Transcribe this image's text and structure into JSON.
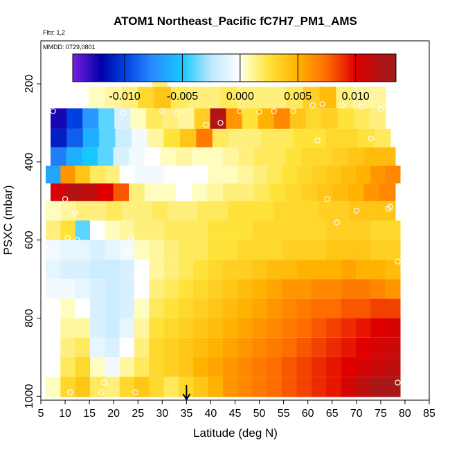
{
  "chart_data": {
    "type": "heatmap",
    "title": "ATOM1 Northeast_Pacific fC7H7_PM1_AMS",
    "annotations": [
      "Flts: 1,2",
      "MMDD: 0729,0801"
    ],
    "xlabel": "Latitude (deg N)",
    "ylabel": "PSXC (mbar)",
    "xlim": [
      5,
      85
    ],
    "ylim": [
      1010,
      90
    ],
    "x_ticks": [
      5,
      10,
      15,
      20,
      25,
      30,
      35,
      40,
      45,
      50,
      55,
      60,
      65,
      70,
      75,
      80,
      85
    ],
    "y_ticks": [
      200,
      400,
      600,
      800,
      1000
    ],
    "colorbar": {
      "range": [
        -0.0145,
        0.0135
      ],
      "ticks": [
        -0.01,
        -0.005,
        0.0,
        0.005,
        0.01
      ],
      "tick_labels": [
        "-0.010",
        "-0.005",
        "0.000",
        "0.005",
        "0.010"
      ],
      "colors": [
        "#7a1ee0",
        "#0000a8",
        "#0040e0",
        "#2a8cff",
        "#16c8ff",
        "#bfe8ff",
        "#ffffff",
        "#fffcc0",
        "#ffe23a",
        "#ffb200",
        "#ff6c00",
        "#e00000",
        "#a81818"
      ],
      "boundaries": [
        -0.0145,
        -0.012,
        -0.01,
        -0.0075,
        -0.005,
        -0.0025,
        0.0,
        0.0005,
        0.0025,
        0.005,
        0.0075,
        0.01,
        0.0125,
        0.0135
      ]
    },
    "marker": {
      "x": 35,
      "label": "arrow"
    },
    "cells": [
      {
        "p": 975,
        "range": [
          6,
          79
        ],
        "values": [
          0.0005,
          0.003,
          0.004,
          0.002,
          0.0015,
          0.003,
          0.004,
          0.003,
          0.002,
          0.003,
          0.004,
          0.005,
          0.006,
          0.0065,
          0.007,
          0.0075,
          0.008,
          0.0085,
          0.009,
          0.0095,
          0.0105,
          0.0115,
          0.0125,
          0.013
        ]
      },
      {
        "p": 925,
        "range": [
          6,
          79
        ],
        "values": [
          0.0,
          0.002,
          0.003,
          0.0005,
          -0.0005,
          0.001,
          0.002,
          0.003,
          0.0035,
          0.004,
          0.005,
          0.0055,
          0.006,
          0.0065,
          0.007,
          0.0075,
          0.008,
          0.0085,
          0.009,
          0.0095,
          0.01,
          0.0105,
          0.011,
          0.0115
        ]
      },
      {
        "p": 875,
        "range": [
          6,
          79
        ],
        "values": [
          0.0,
          0.0015,
          0.002,
          -0.001,
          -0.0015,
          0.0,
          0.0015,
          0.003,
          0.0035,
          0.004,
          0.0045,
          0.005,
          0.0055,
          0.006,
          0.0065,
          0.007,
          0.0075,
          0.008,
          0.0085,
          0.009,
          0.0095,
          0.01,
          0.0105,
          0.011
        ]
      },
      {
        "p": 825,
        "range": [
          6,
          79
        ],
        "values": [
          0.0,
          0.001,
          0.001,
          -0.0015,
          -0.002,
          -0.001,
          0.001,
          0.0025,
          0.003,
          0.0035,
          0.004,
          0.0045,
          0.005,
          0.0055,
          0.006,
          0.0065,
          0.007,
          0.0075,
          0.008,
          0.0085,
          0.009,
          0.0095,
          0.01,
          0.0105
        ]
      },
      {
        "p": 775,
        "range": [
          6,
          79
        ],
        "values": [
          0.0,
          0.0005,
          0.0,
          -0.0015,
          -0.002,
          -0.0015,
          0.0005,
          0.002,
          0.0025,
          0.003,
          0.0035,
          0.004,
          0.0045,
          0.005,
          0.0055,
          0.006,
          0.0065,
          0.007,
          0.0075,
          0.0075,
          0.008,
          0.008,
          0.0085,
          0.0085
        ]
      },
      {
        "p": 725,
        "range": [
          6,
          79
        ],
        "values": [
          -0.0005,
          -0.0005,
          -0.001,
          -0.0015,
          -0.002,
          -0.0015,
          0.0,
          0.0015,
          0.002,
          0.0025,
          0.003,
          0.0035,
          0.004,
          0.0045,
          0.005,
          0.0055,
          0.006,
          0.006,
          0.0065,
          0.0065,
          0.007,
          0.007,
          0.0065,
          0.006
        ]
      },
      {
        "p": 675,
        "range": [
          6,
          79
        ],
        "values": [
          -0.001,
          -0.0015,
          -0.0015,
          -0.002,
          -0.002,
          -0.0015,
          0.0,
          0.001,
          0.0015,
          0.002,
          0.0025,
          0.003,
          0.0035,
          0.0035,
          0.004,
          0.0045,
          0.0045,
          0.005,
          0.005,
          0.005,
          0.0055,
          0.005,
          0.005,
          0.0045
        ]
      },
      {
        "p": 625,
        "range": [
          6,
          79
        ],
        "values": [
          -0.0005,
          -0.001,
          -0.001,
          -0.0015,
          -0.001,
          -0.0005,
          0.0005,
          0.001,
          0.0015,
          0.002,
          0.002,
          0.0025,
          0.0025,
          0.003,
          0.003,
          0.003,
          0.0035,
          0.0035,
          0.0035,
          0.004,
          0.004,
          0.004,
          0.0035,
          0.0035
        ]
      },
      {
        "p": 575,
        "range": [
          6,
          79
        ],
        "values": [
          0.0015,
          0.0025,
          -0.004,
          0.0,
          0.0005,
          0.001,
          0.0015,
          0.0015,
          0.002,
          0.002,
          0.002,
          0.0025,
          0.0025,
          0.0025,
          0.003,
          0.003,
          0.003,
          0.003,
          0.003,
          0.0035,
          0.0035,
          0.0035,
          0.003,
          0.003
        ]
      },
      {
        "p": 525,
        "range": [
          6,
          78
        ],
        "values": [
          0.0005,
          0.001,
          0.0015,
          0.0015,
          0.002,
          0.0015,
          0.0015,
          0.002,
          0.0015,
          0.0015,
          0.002,
          0.002,
          0.0025,
          0.0025,
          0.0025,
          0.003,
          0.003,
          0.003,
          0.0035,
          0.0035,
          0.004,
          0.004,
          0.004
        ]
      },
      {
        "p": 475,
        "range": [
          7,
          78
        ],
        "values": [
          0.0105,
          0.012,
          0.0115,
          0.01,
          0.008,
          0.0015,
          0.0005,
          0.0005,
          0.0,
          0.0005,
          0.001,
          0.0015,
          0.0015,
          0.002,
          0.0025,
          0.003,
          0.0035,
          0.004,
          0.0045,
          0.005,
          0.006,
          0.0065
        ]
      },
      {
        "p": 435,
        "range": [
          6,
          79
        ],
        "values": [
          -0.0065,
          0.006,
          0.004,
          0.002,
          0.0015,
          0.0,
          -0.0005,
          -0.0005,
          0.0,
          0.0,
          0.0,
          0.0005,
          0.0005,
          0.001,
          0.0015,
          0.002,
          0.0025,
          0.003,
          0.0035,
          0.004,
          0.0045,
          0.005,
          0.006,
          0.0065
        ]
      },
      {
        "p": 385,
        "range": [
          7,
          78
        ],
        "values": [
          -0.008,
          -0.006,
          -0.005,
          -0.004,
          -0.0015,
          -0.0005,
          0.0,
          0.0005,
          0.001,
          0.0005,
          0.0005,
          0.001,
          0.0015,
          0.002,
          0.002,
          0.0025,
          0.003,
          0.003,
          0.0035,
          0.004,
          0.0045,
          0.0045
        ]
      },
      {
        "p": 340,
        "range": [
          7,
          77
        ],
        "values": [
          -0.011,
          -0.009,
          -0.006,
          -0.004,
          -0.002,
          -0.0005,
          0.001,
          0.0025,
          0.004,
          0.007,
          0.002,
          0.0015,
          0.0015,
          0.002,
          0.002,
          0.0025,
          0.0025,
          0.003,
          0.003,
          0.0025,
          0.002
        ]
      },
      {
        "p": 290,
        "range": [
          7,
          76
        ],
        "values": [
          -0.0125,
          -0.01,
          -0.007,
          -0.004,
          -0.0015,
          0.0005,
          0.002,
          0.0015,
          0.001,
          0.0035,
          0.012,
          0.006,
          0.0025,
          0.005,
          0.0065,
          0.004,
          0.003,
          0.0035,
          0.0025,
          0.002,
          0.0015
        ]
      },
      {
        "p": 235,
        "range": [
          8,
          76
        ],
        "values": [
          0.0,
          0.0,
          0.0005,
          0.001,
          0.0015,
          0.003,
          0.004,
          0.002,
          0.0015,
          0.0015,
          0.002,
          0.0015,
          0.0015,
          0.0015,
          0.002,
          0.0035,
          0.0045,
          0.0015,
          0.001,
          0.001
        ]
      },
      {
        "p": 180,
        "range": [
          28,
          31
        ],
        "values": [
          0.0015
        ]
      }
    ],
    "points": [
      {
        "x": 7.5,
        "y": 270
      },
      {
        "x": 14.5,
        "y": 240
      },
      {
        "x": 22,
        "y": 275
      },
      {
        "x": 30,
        "y": 270
      },
      {
        "x": 33,
        "y": 275
      },
      {
        "x": 39,
        "y": 305
      },
      {
        "x": 42,
        "y": 300
      },
      {
        "x": 46,
        "y": 270
      },
      {
        "x": 50,
        "y": 272
      },
      {
        "x": 53,
        "y": 270
      },
      {
        "x": 57,
        "y": 270
      },
      {
        "x": 61,
        "y": 255
      },
      {
        "x": 63,
        "y": 252
      },
      {
        "x": 67,
        "y": 255
      },
      {
        "x": 71,
        "y": 258
      },
      {
        "x": 75,
        "y": 265
      },
      {
        "x": 62,
        "y": 345
      },
      {
        "x": 73,
        "y": 340
      },
      {
        "x": 10,
        "y": 495
      },
      {
        "x": 12,
        "y": 530
      },
      {
        "x": 64,
        "y": 495
      },
      {
        "x": 66,
        "y": 555
      },
      {
        "x": 70,
        "y": 525
      },
      {
        "x": 76.5,
        "y": 520
      },
      {
        "x": 77,
        "y": 515
      },
      {
        "x": 10.5,
        "y": 595
      },
      {
        "x": 12.5,
        "y": 600
      },
      {
        "x": 23.5,
        "y": 595
      },
      {
        "x": 6,
        "y": 625
      },
      {
        "x": 23,
        "y": 630
      },
      {
        "x": 78.5,
        "y": 655
      },
      {
        "x": 18,
        "y": 965
      },
      {
        "x": 11,
        "y": 990
      },
      {
        "x": 17.5,
        "y": 990
      },
      {
        "x": 24.5,
        "y": 990
      },
      {
        "x": 78.5,
        "y": 965
      }
    ]
  }
}
